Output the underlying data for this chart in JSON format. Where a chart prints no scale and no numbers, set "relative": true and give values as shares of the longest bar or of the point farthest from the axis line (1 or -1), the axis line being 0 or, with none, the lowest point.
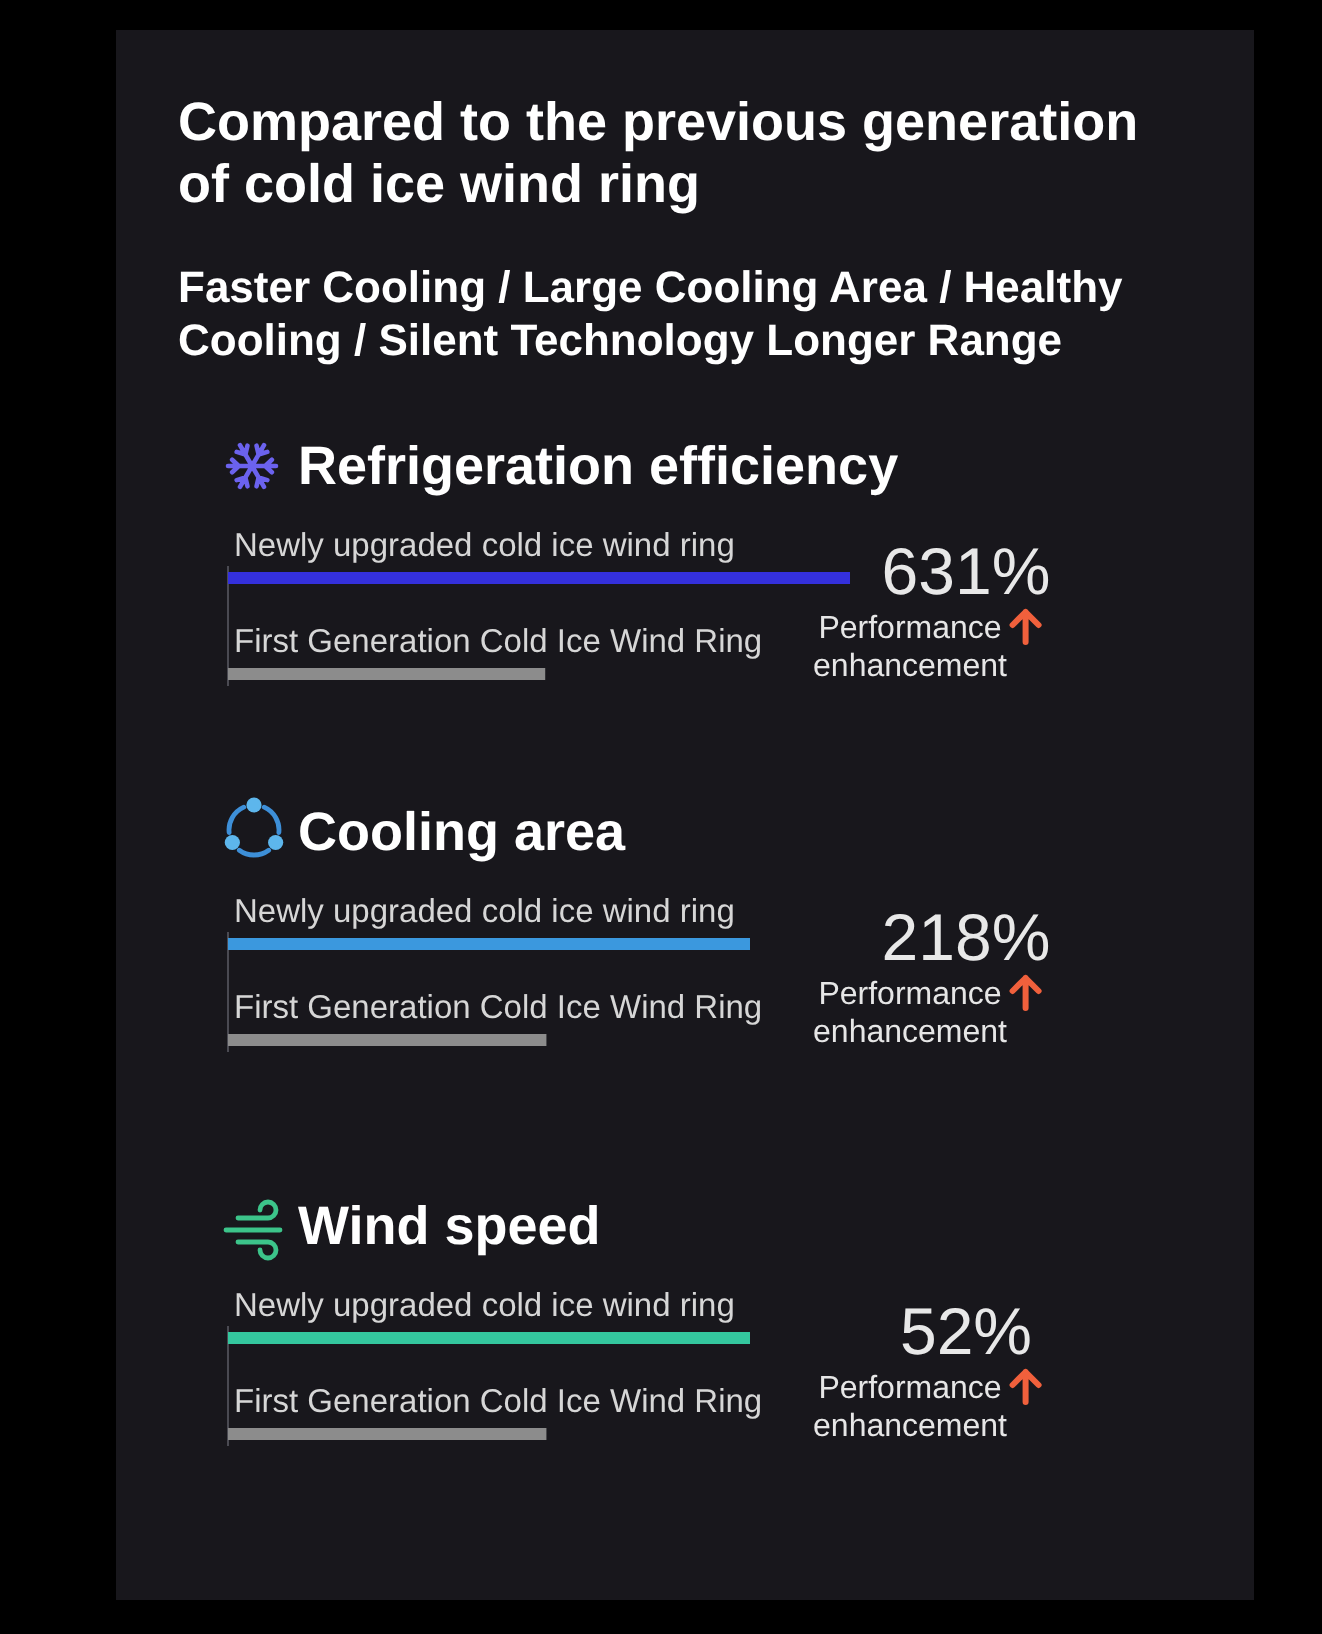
{
  "chart_data": [
    {
      "type": "other",
      "title": "Compared to the previous generation of cold ice wind ring",
      "subtitle": "Faster Cooling / Large Cooling Area / Healthy Cooling / Silent Technology Longer Range"
    },
    {
      "type": "bar",
      "orientation": "horizontal",
      "relative": true,
      "title": "Refrigeration efficiency",
      "categories": [
        "Newly upgraded cold ice wind ring",
        "First Generation Cold Ice Wind Ring"
      ],
      "values": [
        1,
        0.51
      ],
      "colors": [
        "#3430dc",
        "#8c8c8c"
      ],
      "annotations": [
        "631%",
        "Performance enhancement"
      ]
    },
    {
      "type": "bar",
      "orientation": "horizontal",
      "relative": true,
      "title": "Cooling area",
      "categories": [
        "Newly upgraded cold ice wind ring",
        "First Generation Cold Ice Wind Ring"
      ],
      "values": [
        1,
        0.61
      ],
      "colors": [
        "#3b98de",
        "#8c8c8c"
      ],
      "annotations": [
        "218%",
        "Performance enhancement"
      ]
    },
    {
      "type": "bar",
      "orientation": "horizontal",
      "relative": true,
      "title": "Wind speed",
      "categories": [
        "Newly upgraded cold ice wind ring",
        "First Generation Cold Ice Wind Ring"
      ],
      "values": [
        1,
        0.61
      ],
      "colors": [
        "#34c79e",
        "#8c8c8c"
      ],
      "annotations": [
        "52%",
        "Performance enhancement"
      ]
    }
  ]
}
